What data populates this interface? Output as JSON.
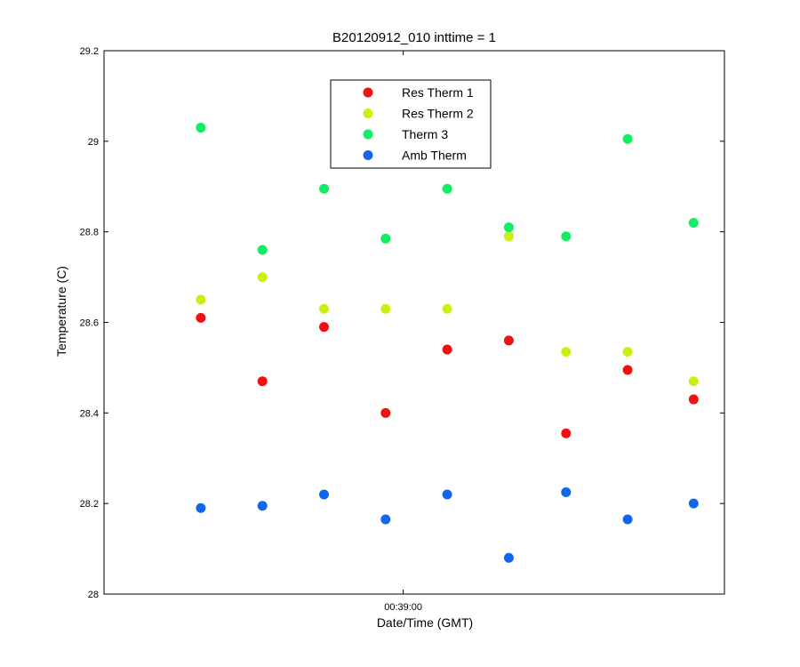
{
  "chart_data": {
    "type": "scatter",
    "title": "B20120912_010 inttime = 1",
    "xlabel": "Date/Time (GMT)",
    "ylabel": "Temperature (C)",
    "ylim": [
      28,
      29.2
    ],
    "yticks": [
      28,
      28.2,
      28.4,
      28.6,
      28.8,
      29,
      29.2
    ],
    "ytick_labels": [
      "28",
      "28.2",
      "28.4",
      "28.6",
      "28.8",
      "29",
      "29.2"
    ],
    "xlim": [
      "00:37:52",
      "00:40:13"
    ],
    "xticks": [
      "00:39:00"
    ],
    "xtick_labels": [
      "00:39:00"
    ],
    "grid": false,
    "legend_position": "top-center",
    "x": [
      "00:38:14",
      "00:38:28",
      "00:38:42",
      "00:38:56",
      "00:39:10",
      "00:39:24",
      "00:39:37",
      "00:39:51",
      "00:40:06"
    ],
    "series": [
      {
        "name": "Res Therm 1",
        "color": "#ee1111",
        "values": [
          28.61,
          28.47,
          28.59,
          28.4,
          28.54,
          28.56,
          28.355,
          28.495,
          28.43
        ]
      },
      {
        "name": "Res Therm 2",
        "color": "#ccee11",
        "values": [
          28.65,
          28.7,
          28.63,
          28.63,
          28.63,
          28.79,
          28.535,
          28.535,
          28.47
        ]
      },
      {
        "name": "Therm 3",
        "color": "#11ee66",
        "values": [
          29.03,
          28.76,
          28.895,
          28.785,
          28.895,
          28.81,
          28.79,
          29.005,
          28.82
        ]
      },
      {
        "name": "Amb Therm",
        "color": "#1166ee",
        "values": [
          28.19,
          28.195,
          28.22,
          28.165,
          28.22,
          28.08,
          28.225,
          28.165,
          28.2
        ]
      }
    ]
  }
}
